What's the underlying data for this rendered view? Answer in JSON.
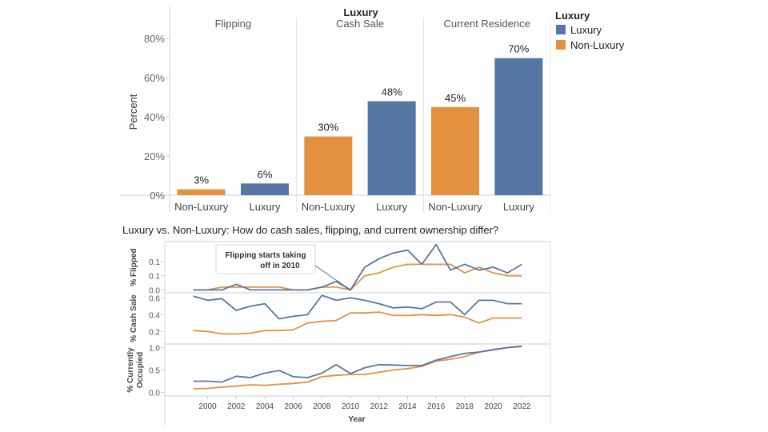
{
  "chart_data": [
    {
      "type": "bar",
      "super_header": "Luxury",
      "facet_labels": [
        "Flipping",
        "Cash Sale",
        "Current Residence"
      ],
      "categories": [
        "Non-Luxury",
        "Luxury"
      ],
      "ylabel": "Percent",
      "ylim": [
        0,
        0.85
      ],
      "yticks": [
        "0%",
        "20%",
        "40%",
        "60%",
        "80%"
      ],
      "ytick_values": [
        0,
        0.2,
        0.4,
        0.6,
        0.8
      ],
      "facets": [
        {
          "name": "Flipping",
          "values": [
            0.03,
            0.06
          ],
          "labels": [
            "3%",
            "6%"
          ]
        },
        {
          "name": "Cash Sale",
          "values": [
            0.3,
            0.48
          ],
          "labels": [
            "30%",
            "48%"
          ]
        },
        {
          "name": "Current Residence",
          "values": [
            0.45,
            0.7
          ],
          "labels": [
            "45%",
            "70%"
          ]
        }
      ],
      "legend": {
        "title": "Luxury",
        "placement": "right",
        "items": [
          {
            "label": "Luxury",
            "color": "#5677a4"
          },
          {
            "label": "Non-Luxury",
            "color": "#e4913f"
          }
        ]
      },
      "grid": false
    },
    {
      "type": "line",
      "title": "Luxury vs. Non-Luxury: How do cash sales, flipping, and current ownership differ?",
      "xlabel": "Year",
      "x": [
        1999,
        2000,
        2001,
        2002,
        2003,
        2004,
        2005,
        2006,
        2007,
        2008,
        2009,
        2010,
        2011,
        2012,
        2013,
        2014,
        2015,
        2016,
        2017,
        2018,
        2019,
        2020,
        2021,
        2022
      ],
      "xticks": [
        "2000",
        "2002",
        "2004",
        "2006",
        "2008",
        "2010",
        "2012",
        "2014",
        "2016",
        "2018",
        "2020",
        "2022"
      ],
      "xtick_values": [
        2000,
        2002,
        2004,
        2006,
        2008,
        2010,
        2012,
        2014,
        2016,
        2018,
        2020,
        2022
      ],
      "xlim": [
        1997,
        2024
      ],
      "series_colors": {
        "Luxury": "#5677a4",
        "Non-Luxury": "#e4913f"
      },
      "panels": [
        {
          "ylabel": "% Flipped",
          "ylim": [
            -0.01,
            0.17
          ],
          "yticks": [
            "0.0",
            "0.1",
            "0.1"
          ],
          "ytick_values": [
            0.0,
            0.05,
            0.1
          ],
          "annotation": {
            "line1": "Flipping starts taking",
            "line2": "off in 2010",
            "x": 2010,
            "y": 0.0
          },
          "series": [
            {
              "name": "Luxury",
              "values": [
                0.0,
                0.0,
                0.0,
                0.02,
                0.0,
                0.0,
                0.0,
                0.0,
                0.0,
                0.01,
                0.03,
                0.0,
                0.08,
                0.11,
                0.13,
                0.14,
                0.09,
                0.16,
                0.07,
                0.09,
                0.07,
                0.08,
                0.06,
                0.09
              ]
            },
            {
              "name": "Non-Luxury",
              "values": [
                0.0,
                0.0,
                0.01,
                0.01,
                0.01,
                0.01,
                0.01,
                0.0,
                0.0,
                0.01,
                0.01,
                0.0,
                0.05,
                0.06,
                0.08,
                0.09,
                0.09,
                0.09,
                0.09,
                0.06,
                0.08,
                0.06,
                0.05,
                0.05
              ]
            }
          ]
        },
        {
          "ylabel": "% Cash Sale",
          "ylim": [
            0.05,
            0.66
          ],
          "yticks": [
            "0.2",
            "0.4",
            "0.6"
          ],
          "ytick_values": [
            0.2,
            0.4,
            0.6
          ],
          "series": [
            {
              "name": "Luxury",
              "values": [
                0.62,
                0.57,
                0.59,
                0.45,
                0.5,
                0.53,
                0.35,
                0.38,
                0.4,
                0.63,
                0.57,
                0.6,
                0.57,
                0.53,
                0.48,
                0.49,
                0.47,
                0.55,
                0.55,
                0.4,
                0.57,
                0.57,
                0.53,
                0.53
              ]
            },
            {
              "name": "Non-Luxury",
              "values": [
                0.21,
                0.2,
                0.17,
                0.17,
                0.18,
                0.21,
                0.21,
                0.22,
                0.3,
                0.32,
                0.33,
                0.42,
                0.42,
                0.43,
                0.39,
                0.39,
                0.4,
                0.39,
                0.4,
                0.37,
                0.3,
                0.36,
                0.36,
                0.36
              ]
            }
          ]
        },
        {
          "ylabel": "% Currently",
          "ylabel2": "Occupied",
          "ylim": [
            -0.08,
            1.08
          ],
          "yticks": [
            "0.0",
            "0.5",
            "1.0"
          ],
          "ytick_values": [
            0.0,
            0.5,
            1.0
          ],
          "series": [
            {
              "name": "Luxury",
              "values": [
                0.25,
                0.25,
                0.23,
                0.36,
                0.33,
                0.43,
                0.49,
                0.35,
                0.33,
                0.43,
                0.62,
                0.42,
                0.55,
                0.62,
                0.61,
                0.6,
                0.6,
                0.72,
                0.8,
                0.87,
                0.9,
                0.95,
                1.0,
                1.03
              ]
            },
            {
              "name": "Non-Luxury",
              "values": [
                0.08,
                0.09,
                0.12,
                0.14,
                0.17,
                0.16,
                0.18,
                0.2,
                0.23,
                0.35,
                0.38,
                0.4,
                0.4,
                0.45,
                0.5,
                0.53,
                0.58,
                0.7,
                0.74,
                0.8,
                0.9,
                0.96,
                1.0,
                1.03
              ]
            }
          ]
        }
      ],
      "grid": false
    }
  ]
}
